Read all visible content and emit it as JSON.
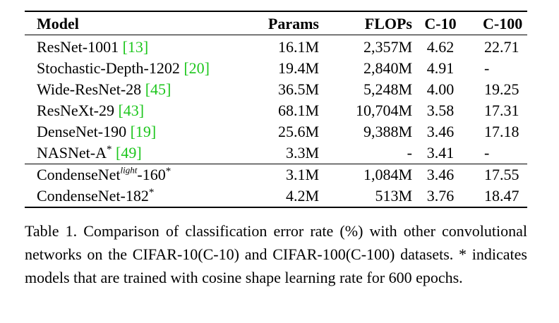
{
  "table": {
    "headers": {
      "model": "Model",
      "params": "Params",
      "flops": "FLOPs",
      "c10": "C-10",
      "c100": "C-100"
    },
    "rows": [
      {
        "name": "ResNet-1001 ",
        "ref": "[13]",
        "params": "16.1M",
        "flops": "2,357M",
        "c10": "4.62",
        "c100": "22.71"
      },
      {
        "name": "Stochastic-Depth-1202 ",
        "ref": "[20]",
        "params": "19.4M",
        "flops": "2,840M",
        "c10": "4.91",
        "c100": "-"
      },
      {
        "name": "Wide-ResNet-28 ",
        "ref": "[45]",
        "params": "36.5M",
        "flops": "5,248M",
        "c10": "4.00",
        "c100": "19.25"
      },
      {
        "name": "ResNeXt-29 ",
        "ref": "[43]",
        "params": "68.1M",
        "flops": "10,704M",
        "c10": "3.58",
        "c100": "17.31"
      },
      {
        "name": "DenseNet-190 ",
        "ref": "[19]",
        "params": "25.6M",
        "flops": "9,388M",
        "c10": "3.46",
        "c100": "17.18"
      },
      {
        "name": "NASNet-A",
        "star": "*",
        "ref": "[49]",
        "params": "3.3M",
        "flops": "-",
        "c10": "3.41",
        "c100": "-"
      }
    ],
    "ours": [
      {
        "name": "CondenseNet",
        "sup": "light",
        "suffix": "-160",
        "star": "*",
        "params": "3.1M",
        "flops": "1,084M",
        "c10": "3.46",
        "c100": "17.55"
      },
      {
        "name": "CondenseNet-182",
        "star": "*",
        "params": "4.2M",
        "flops": "513M",
        "c10": "3.76",
        "c100": "18.47"
      }
    ]
  },
  "caption": "Table 1. Comparison of classification error rate (%) with other convolutional networks on the CIFAR-10(C-10) and CIFAR-100(C-100) datasets. * indicates models that are trained with cosine shape learning rate for 600 epochs.",
  "colors": {
    "reference_link": "#1cc61c",
    "text": "#000000"
  }
}
